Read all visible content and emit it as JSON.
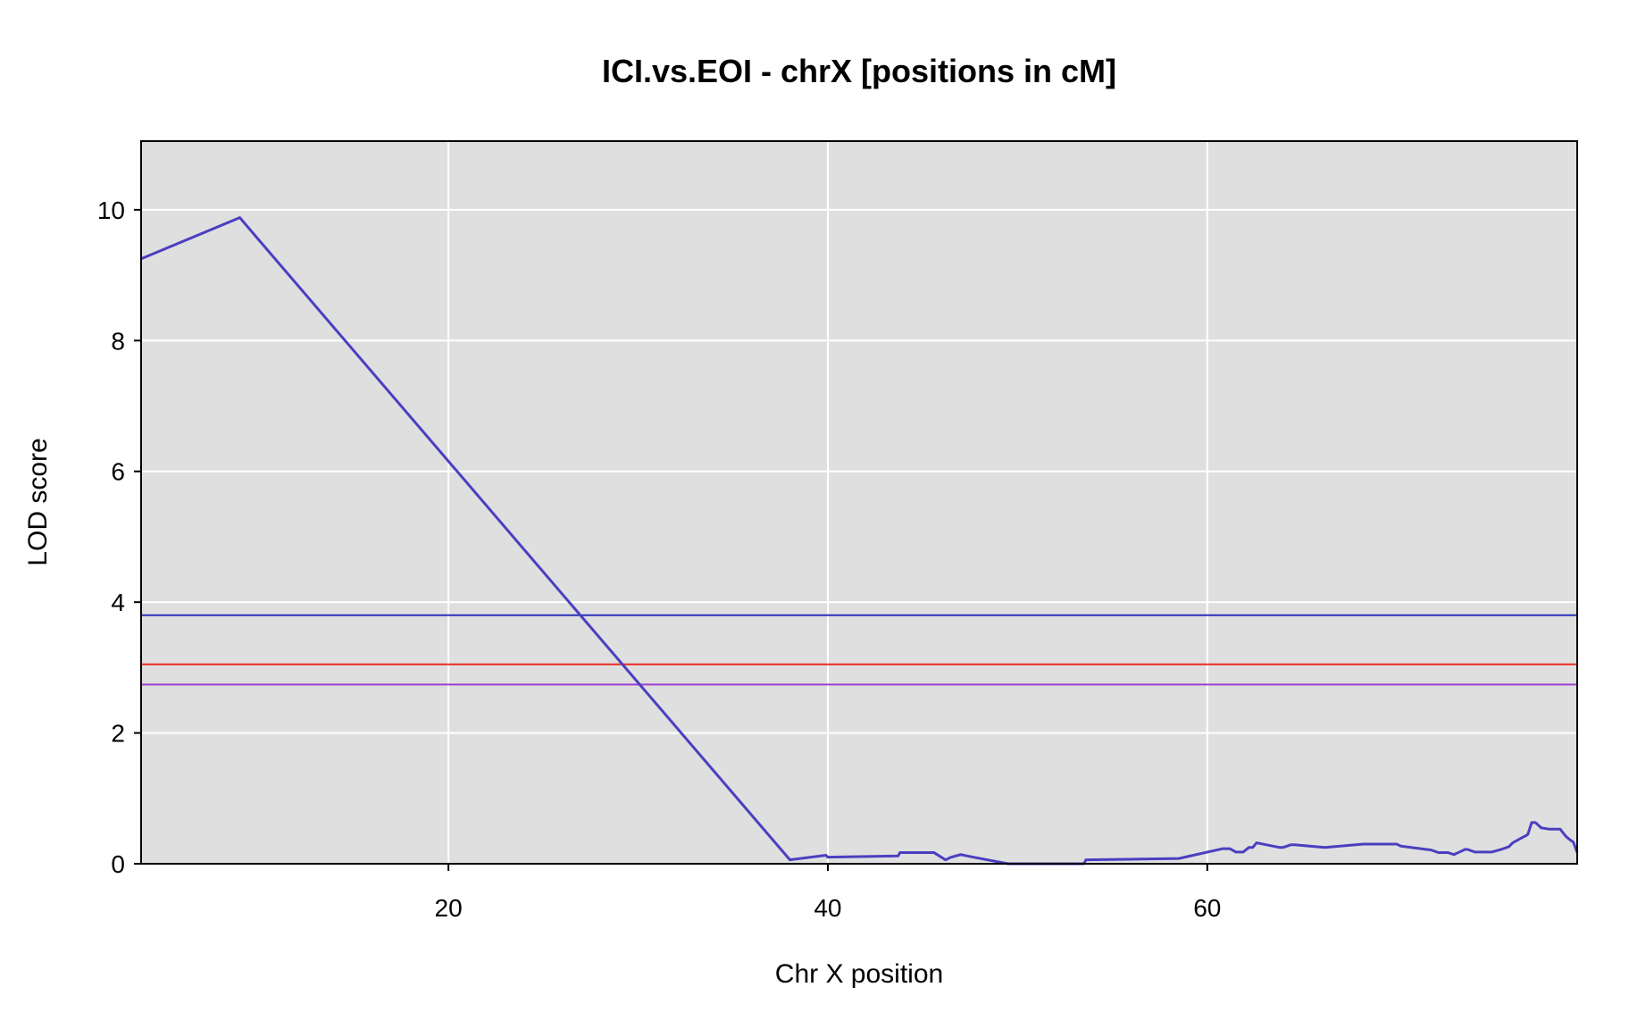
{
  "chart_data": {
    "type": "line",
    "title": "ICI.vs.EOI - chrX [positions in cM]",
    "xlabel": "Chr X position",
    "ylabel": "LOD score",
    "xlim": [
      3.8,
      79.5
    ],
    "ylim": [
      0,
      11.05
    ],
    "xticks": [
      20,
      40,
      60
    ],
    "yticks": [
      0,
      2,
      4,
      6,
      8,
      10
    ],
    "grid": true,
    "background": "#dfdfdf",
    "series": [
      {
        "color": "#4b3fc0",
        "x": [
          3.8,
          9.0,
          38.0,
          39.9,
          40.0,
          43.7,
          43.8,
          45.6,
          46.2,
          46.5,
          47.0,
          47.5,
          49.5,
          53.5,
          53.6,
          58.5,
          60.8,
          61.2,
          61.5,
          61.9,
          62.2,
          62.4,
          62.6,
          63.8,
          64.0,
          64.4,
          64.6,
          66.2,
          68.2,
          69.8,
          70.0,
          70.2,
          71.8,
          72.2,
          72.7,
          73.0,
          73.3,
          73.6,
          73.7,
          74.1,
          74.3,
          74.7,
          75.0,
          75.5,
          75.9,
          76.1,
          76.6,
          76.8,
          76.9,
          77.1,
          77.3,
          77.6,
          78.0,
          78.3,
          78.4,
          78.6,
          78.9,
          79.1,
          79.3,
          79.5
        ],
        "y": [
          9.25,
          9.88,
          0.06,
          0.13,
          0.1,
          0.12,
          0.17,
          0.17,
          0.06,
          0.1,
          0.14,
          0.11,
          0.0,
          0.0,
          0.06,
          0.08,
          0.23,
          0.23,
          0.18,
          0.18,
          0.25,
          0.25,
          0.32,
          0.25,
          0.25,
          0.29,
          0.29,
          0.25,
          0.3,
          0.3,
          0.3,
          0.27,
          0.21,
          0.17,
          0.17,
          0.14,
          0.18,
          0.22,
          0.22,
          0.18,
          0.18,
          0.18,
          0.18,
          0.22,
          0.26,
          0.32,
          0.4,
          0.43,
          0.45,
          0.63,
          0.63,
          0.55,
          0.53,
          0.53,
          0.53,
          0.53,
          0.42,
          0.37,
          0.33,
          0.17
        ]
      }
    ],
    "thresholds": [
      {
        "value": 3.8,
        "color": "#2b2fb8"
      },
      {
        "value": 3.05,
        "color": "#ee2a24"
      },
      {
        "value": 2.74,
        "color": "#9b3ed1"
      }
    ]
  }
}
